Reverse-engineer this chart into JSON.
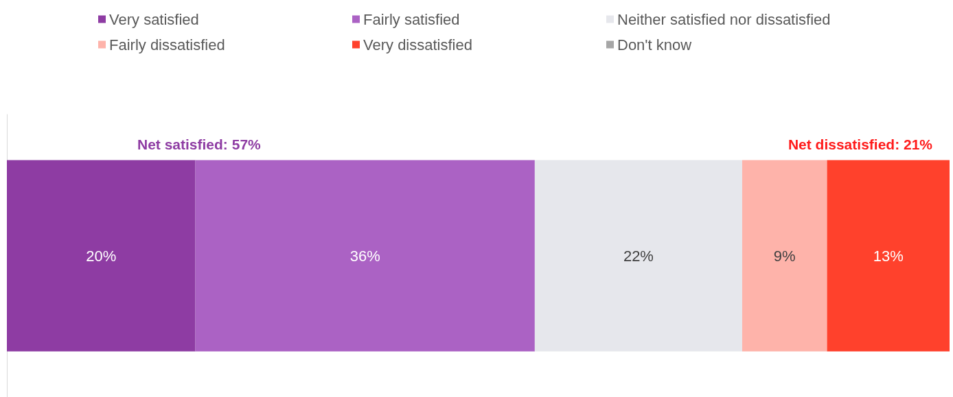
{
  "chart_data": {
    "type": "bar",
    "orientation": "horizontal",
    "stacked": true,
    "categories": [
      null
    ],
    "series": [
      {
        "name": "Very satisfied",
        "color": "#8e3ca3",
        "values": [
          20
        ],
        "value_labels": [
          "20%"
        ]
      },
      {
        "name": "Fairly satisfied",
        "color": "#ab62c4",
        "values": [
          36
        ],
        "value_labels": [
          "36%"
        ]
      },
      {
        "name": "Neither satisfied nor dissatisfied",
        "color": "#e6e7ec",
        "values": [
          22
        ],
        "value_labels": [
          "22%"
        ]
      },
      {
        "name": "Fairly dissatisfied",
        "color": "#feb3aa",
        "values": [
          9
        ],
        "value_labels": [
          "9%"
        ]
      },
      {
        "name": "Very dissatisfied",
        "color": "#ff412c",
        "values": [
          13
        ],
        "value_labels": [
          "13%"
        ]
      },
      {
        "name": "Don't know",
        "color": "#a6a6a6",
        "values": [
          null
        ]
      }
    ],
    "tick_labels": false,
    "legend": "top",
    "annotations": [
      "Net satisfied: 57%",
      "Net dissatisfied: 21%"
    ]
  }
}
